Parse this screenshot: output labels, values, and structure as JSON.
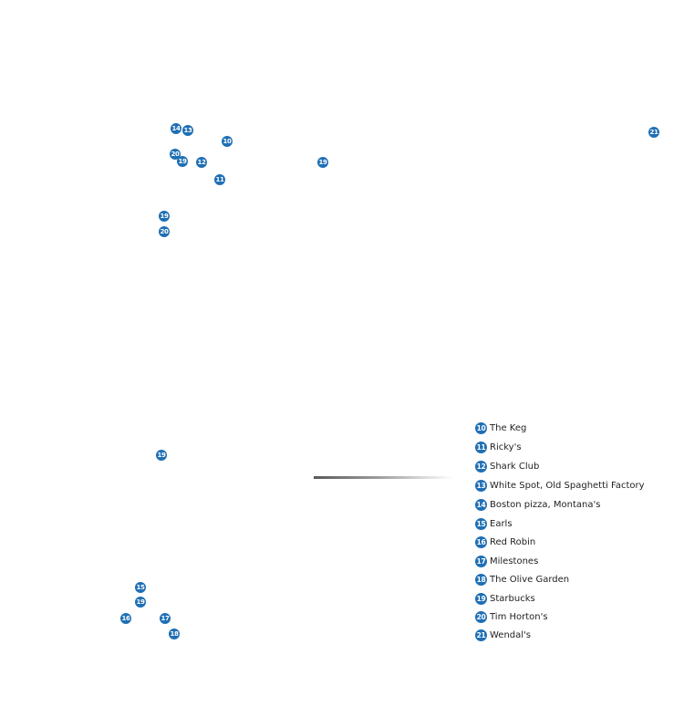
{
  "marker_color": "#1f6fb4",
  "map": {
    "markers": [
      {
        "id": "14"
      },
      {
        "id": "13"
      },
      {
        "id": "10"
      },
      {
        "id": "20"
      },
      {
        "id": "19"
      },
      {
        "id": "12"
      },
      {
        "id": "19"
      },
      {
        "id": "11"
      },
      {
        "id": "21"
      },
      {
        "id": "19"
      },
      {
        "id": "20"
      },
      {
        "id": "19"
      },
      {
        "id": "15"
      },
      {
        "id": "19"
      },
      {
        "id": "16"
      },
      {
        "id": "17"
      },
      {
        "id": "18"
      }
    ]
  },
  "legend": {
    "items": [
      {
        "id": "10",
        "label": "The Keg"
      },
      {
        "id": "11",
        "label": "Ricky's"
      },
      {
        "id": "12",
        "label": "Shark Club"
      },
      {
        "id": "13",
        "label": "White Spot, Old Spaghetti Factory"
      },
      {
        "id": "14",
        "label": "Boston pizza, Montana's"
      },
      {
        "id": "15",
        "label": "Earls"
      },
      {
        "id": "16",
        "label": "Red Robin"
      },
      {
        "id": "17",
        "label": "Milestones"
      },
      {
        "id": "18",
        "label": "The Olive Garden"
      },
      {
        "id": "19",
        "label": "Starbucks"
      },
      {
        "id": "20",
        "label": "Tim Horton's"
      },
      {
        "id": "21",
        "label": "Wendal's"
      }
    ]
  }
}
